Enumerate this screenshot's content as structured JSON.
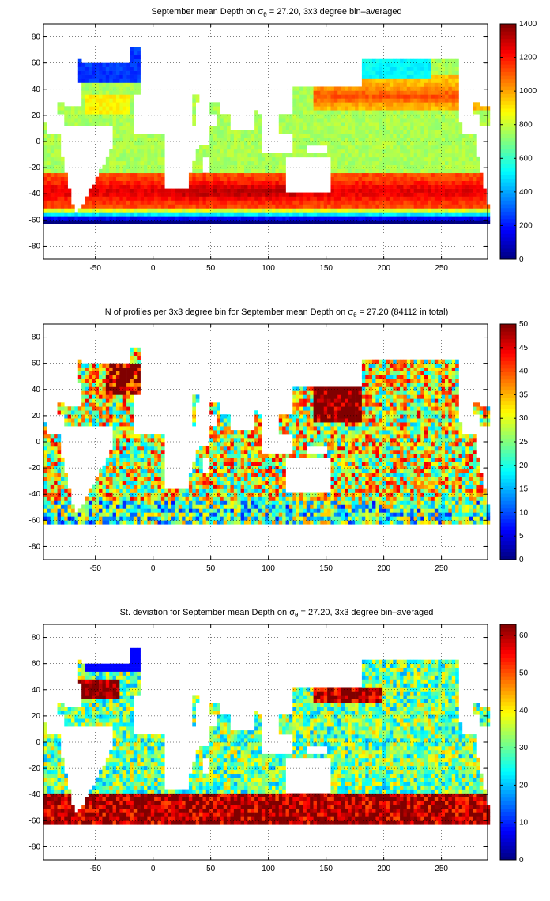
{
  "chart_data": [
    {
      "type": "heatmap",
      "title": "September mean Depth on σ = 27.20, 3x3 degree bin–averaged",
      "title_parts": {
        "pre": "September mean Depth on σ",
        "sub": "θ",
        "post": " = 27.20, 3x3 degree bin–averaged"
      },
      "xlim": [
        -95,
        290
      ],
      "ylim": [
        -90,
        90
      ],
      "xticks": [
        -50,
        0,
        50,
        100,
        150,
        200,
        250
      ],
      "yticks": [
        -80,
        -60,
        -40,
        -20,
        0,
        20,
        40,
        60,
        80
      ],
      "clim": [
        0,
        1400
      ],
      "cbar_ticks": [
        0,
        200,
        400,
        600,
        800,
        1000,
        1200,
        1400
      ],
      "colormap": "jet",
      "grid": "dotted",
      "description_of_field": "mean depth (m) of isopycnal; ~300 in North Atlantic/North Pacific margins, ~700-800 tropics, ~1100-1300 at 30-45S, ~200-400 near 55-60S"
    },
    {
      "type": "heatmap",
      "title": "N of profiles per 3x3 degree bin for September mean Depth on σ = 27.20 (84112 in total)",
      "title_parts": {
        "pre": "N of profiles per 3x3 degree bin for September mean Depth on σ",
        "sub": "θ",
        "post": " = 27.20 (84112 in total)"
      },
      "xlim": [
        -95,
        290
      ],
      "ylim": [
        -90,
        90
      ],
      "xticks": [
        -50,
        0,
        50,
        100,
        150,
        200,
        250
      ],
      "yticks": [
        -80,
        -60,
        -40,
        -20,
        0,
        20,
        40,
        60,
        80
      ],
      "clim": [
        0,
        50
      ],
      "cbar_ticks": [
        0,
        5,
        10,
        15,
        20,
        25,
        30,
        35,
        40,
        45,
        50
      ],
      "colormap": "jet",
      "grid": "dotted"
    },
    {
      "type": "heatmap",
      "title": "St. deviation for September mean Depth on σ = 27.20, 3x3 degree bin–averaged",
      "title_parts": {
        "pre": "St. deviation for September mean Depth on σ",
        "sub": "θ",
        "post": " = 27.20, 3x3 degree bin–averaged"
      },
      "xlim": [
        -95,
        290
      ],
      "ylim": [
        -90,
        90
      ],
      "xticks": [
        -50,
        0,
        50,
        100,
        150,
        200,
        250
      ],
      "yticks": [
        -80,
        -60,
        -40,
        -20,
        0,
        20,
        40,
        60,
        80
      ],
      "clim": [
        0,
        63
      ],
      "cbar_ticks": [
        0,
        10,
        20,
        30,
        40,
        50,
        60
      ],
      "colormap": "jet",
      "grid": "dotted"
    }
  ]
}
